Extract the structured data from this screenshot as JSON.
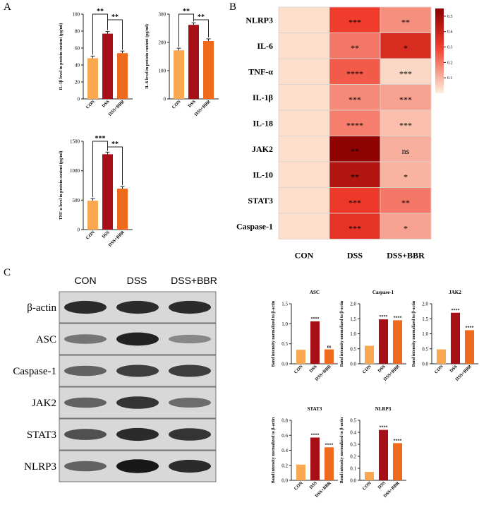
{
  "panels": {
    "a": "A",
    "b": "B",
    "c": "C"
  },
  "colors": {
    "con": "#f9a84f",
    "dss": "#a50f15",
    "dss_bbr": "#f06a1d",
    "heat_low": "#fdf0dc",
    "heat_high": "#8b0000"
  },
  "chart_data": [
    {
      "id": "il1b",
      "type": "bar",
      "categories": [
        "CON",
        "DSS",
        "DSS+BBR"
      ],
      "values": [
        48,
        77,
        54
      ],
      "ylim": [
        0,
        100
      ],
      "yticks": [
        "0",
        "20",
        "40",
        "60",
        "80",
        "100"
      ],
      "ylabel": "IL-1β level in protein content (pg/ml)",
      "comparisons": [
        {
          "from": 0,
          "to": 1,
          "label": "**"
        },
        {
          "from": 1,
          "to": 2,
          "label": "**"
        }
      ]
    },
    {
      "id": "il6",
      "type": "bar",
      "categories": [
        "CON",
        "DSS",
        "DSS+BBR"
      ],
      "values": [
        172,
        262,
        205
      ],
      "ylim": [
        0,
        300
      ],
      "yticks": [
        "0",
        "100",
        "200",
        "300"
      ],
      "ylabel": "IL-6 level in protein content (pg/ml)",
      "comparisons": [
        {
          "from": 0,
          "to": 1,
          "label": "**"
        },
        {
          "from": 1,
          "to": 2,
          "label": "**"
        }
      ]
    },
    {
      "id": "tnfa",
      "type": "bar",
      "categories": [
        "CON",
        "DSS",
        "DSS+BBR"
      ],
      "values": [
        490,
        1280,
        695
      ],
      "ylim": [
        0,
        1500
      ],
      "yticks": [
        "0",
        "500",
        "1000",
        "1500"
      ],
      "ylabel": "TNF-α level in protein content (pg/ml)",
      "comparisons": [
        {
          "from": 0,
          "to": 1,
          "label": "***"
        },
        {
          "from": 1,
          "to": 2,
          "label": "**"
        }
      ]
    },
    {
      "id": "heatmap",
      "type": "heatmap",
      "rows": [
        "NLRP3",
        "IL-6",
        "TNF-α",
        "IL-1β",
        "IL-18",
        "JAK2",
        "IL-10",
        "STAT3",
        "Caspase-1"
      ],
      "columns": [
        "CON",
        "DSS",
        "DSS+BBR"
      ],
      "values": [
        [
          0.03,
          0.3,
          0.16
        ],
        [
          0.03,
          0.2,
          0.36
        ],
        [
          0.03,
          0.25,
          0.04
        ],
        [
          0.03,
          0.17,
          0.13
        ],
        [
          0.03,
          0.19,
          0.08
        ],
        [
          0.03,
          0.54,
          0.11
        ],
        [
          0.03,
          0.46,
          0.1
        ],
        [
          0.03,
          0.31,
          0.2
        ],
        [
          0.03,
          0.33,
          0.13
        ]
      ],
      "significance": [
        [
          "",
          "***",
          "**"
        ],
        [
          "",
          "**",
          "*"
        ],
        [
          "",
          "****",
          "***"
        ],
        [
          "",
          "***",
          "***"
        ],
        [
          "",
          "****",
          "***"
        ],
        [
          "",
          "**",
          "ns"
        ],
        [
          "",
          "**",
          "*"
        ],
        [
          "",
          "***",
          "**"
        ],
        [
          "",
          "***",
          "*"
        ]
      ],
      "colorbar_range": [
        0,
        0.55
      ],
      "colorbar_ticks": [
        "0.1",
        "0.2",
        "0.3",
        "0.4",
        "0.5"
      ]
    },
    {
      "id": "asc",
      "type": "bar",
      "title": "ASC",
      "categories": [
        "CON",
        "DSS",
        "DSS+BBR"
      ],
      "values": [
        0.35,
        1.06,
        0.36
      ],
      "ylim": [
        0,
        1.5
      ],
      "yticks": [
        "0.0",
        "0.5",
        "1.0",
        "1.5"
      ],
      "ylabel": "Band intensity normalized to β-actin",
      "bar_labels": [
        "",
        "****",
        "ns"
      ]
    },
    {
      "id": "caspase1",
      "type": "bar",
      "title": "Caspase-1",
      "categories": [
        "CON",
        "DSS",
        "DSS+BBR"
      ],
      "values": [
        0.6,
        1.48,
        1.45
      ],
      "ylim": [
        0,
        2.0
      ],
      "yticks": [
        "0.0",
        "0.5",
        "1.0",
        "1.5",
        "2.0"
      ],
      "ylabel": "Band intensity normalized to β-actin",
      "bar_labels": [
        "",
        "****",
        "****"
      ]
    },
    {
      "id": "jak2",
      "type": "bar",
      "title": "JAK2",
      "categories": [
        "CON",
        "DSS",
        "DSS+BBR"
      ],
      "values": [
        0.48,
        1.7,
        1.12
      ],
      "ylim": [
        0,
        2.0
      ],
      "yticks": [
        "0.0",
        "0.5",
        "1.0",
        "1.5",
        "2.0"
      ],
      "ylabel": "Band intensity normalized to β-actin",
      "bar_labels": [
        "",
        "****",
        "****"
      ]
    },
    {
      "id": "stat3",
      "type": "bar",
      "title": "STAT3",
      "categories": [
        "CON",
        "DSS",
        "DSS+BBR"
      ],
      "values": [
        0.21,
        0.57,
        0.44
      ],
      "ylim": [
        0,
        0.8
      ],
      "yticks": [
        "0.0",
        "0.2",
        "0.4",
        "0.6",
        "0.8"
      ],
      "ylabel": "Band intensity normalized to β-actin",
      "bar_labels": [
        "",
        "****",
        "****"
      ]
    },
    {
      "id": "nlrp3",
      "type": "bar",
      "title": "NLRP3",
      "categories": [
        "CON",
        "DSS",
        "DSS+BBR"
      ],
      "values": [
        0.07,
        0.42,
        0.31
      ],
      "ylim": [
        0,
        0.5
      ],
      "yticks": [
        "0.0",
        "0.1",
        "0.2",
        "0.3",
        "0.4",
        "0.5"
      ],
      "ylabel": "Band intensity normalized to β-actin",
      "bar_labels": [
        "",
        "****",
        "****"
      ]
    }
  ],
  "western_blot": {
    "columns": [
      "CON",
      "DSS",
      "DSS+BBR"
    ],
    "rows": [
      "β-actin",
      "ASC",
      "Caspase-1",
      "JAK2",
      "STAT3",
      "NLRP3"
    ],
    "band_intensity": [
      [
        0.85,
        0.85,
        0.85
      ],
      [
        0.45,
        0.9,
        0.35
      ],
      [
        0.55,
        0.75,
        0.75
      ],
      [
        0.55,
        0.8,
        0.5
      ],
      [
        0.65,
        0.85,
        0.8
      ],
      [
        0.55,
        0.95,
        0.85
      ]
    ]
  }
}
